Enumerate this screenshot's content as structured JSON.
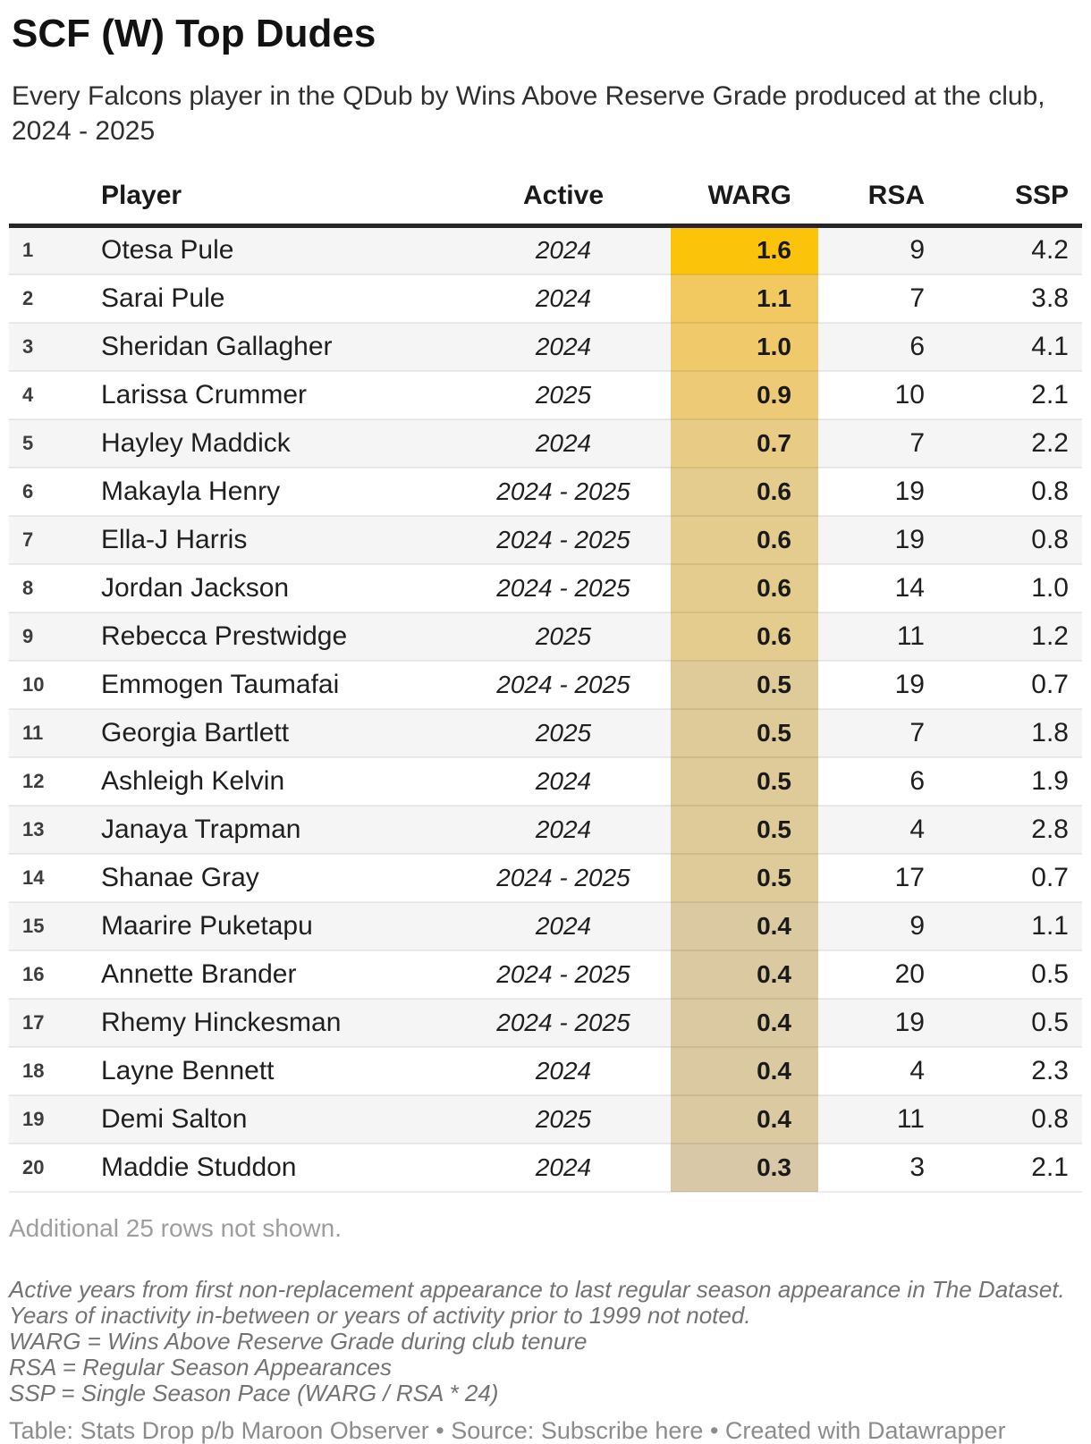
{
  "title": "SCF (W) Top Dudes",
  "subtitle": "Every Falcons player in the QDub by Wins Above Reserve Grade produced at the club, 2024 - 2025",
  "chart_data": {
    "type": "table",
    "title": "SCF (W) Top Dudes",
    "columns": [
      "Player",
      "Active",
      "WARG",
      "RSA",
      "SSP"
    ],
    "heatmap_column": "WARG",
    "colors": {
      "warg_max": "#fcc30b",
      "warg_min": "#d8c8a8",
      "stripe": "#f5f5f5",
      "header_rule": "#262626"
    },
    "rows": [
      {
        "rank": "1",
        "player": "Otesa Pule",
        "active": "2024",
        "warg": "1.6",
        "rsa": "9",
        "ssp": "4.2",
        "warg_color": "#fcc30b"
      },
      {
        "rank": "2",
        "player": "Sarai Pule",
        "active": "2024",
        "warg": "1.1",
        "rsa": "7",
        "ssp": "3.8",
        "warg_color": "#f2c961"
      },
      {
        "rank": "3",
        "player": "Sheridan Gallagher",
        "active": "2024",
        "warg": "1.0",
        "rsa": "6",
        "ssp": "4.1",
        "warg_color": "#f0ca6a"
      },
      {
        "rank": "4",
        "player": "Larissa Crummer",
        "active": "2025",
        "warg": "0.9",
        "rsa": "10",
        "ssp": "2.1",
        "warg_color": "#edcb76"
      },
      {
        "rank": "5",
        "player": "Hayley Maddick",
        "active": "2024",
        "warg": "0.7",
        "rsa": "7",
        "ssp": "2.2",
        "warg_color": "#e8cc86"
      },
      {
        "rank": "6",
        "player": "Makayla Henry",
        "active": "2024 - 2025",
        "warg": "0.6",
        "rsa": "19",
        "ssp": "0.8",
        "warg_color": "#e4cc8f"
      },
      {
        "rank": "7",
        "player": "Ella-J Harris",
        "active": "2024 - 2025",
        "warg": "0.6",
        "rsa": "19",
        "ssp": "0.8",
        "warg_color": "#e4cc8f"
      },
      {
        "rank": "8",
        "player": "Jordan Jackson",
        "active": "2024 - 2025",
        "warg": "0.6",
        "rsa": "14",
        "ssp": "1.0",
        "warg_color": "#e4cc8f"
      },
      {
        "rank": "9",
        "player": "Rebecca Prestwidge",
        "active": "2025",
        "warg": "0.6",
        "rsa": "11",
        "ssp": "1.2",
        "warg_color": "#e4cc8f"
      },
      {
        "rank": "10",
        "player": "Emmogen Taumafai",
        "active": "2024 - 2025",
        "warg": "0.5",
        "rsa": "19",
        "ssp": "0.7",
        "warg_color": "#dfcb99"
      },
      {
        "rank": "11",
        "player": "Georgia Bartlett",
        "active": "2025",
        "warg": "0.5",
        "rsa": "7",
        "ssp": "1.8",
        "warg_color": "#dfcb99"
      },
      {
        "rank": "12",
        "player": "Ashleigh Kelvin",
        "active": "2024",
        "warg": "0.5",
        "rsa": "6",
        "ssp": "1.9",
        "warg_color": "#dfcb99"
      },
      {
        "rank": "13",
        "player": "Janaya Trapman",
        "active": "2024",
        "warg": "0.5",
        "rsa": "4",
        "ssp": "2.8",
        "warg_color": "#dfcb99"
      },
      {
        "rank": "14",
        "player": "Shanae Gray",
        "active": "2024 - 2025",
        "warg": "0.5",
        "rsa": "17",
        "ssp": "0.7",
        "warg_color": "#dfcb99"
      },
      {
        "rank": "15",
        "player": "Maarire Puketapu",
        "active": "2024",
        "warg": "0.4",
        "rsa": "9",
        "ssp": "1.1",
        "warg_color": "#dbc9a1"
      },
      {
        "rank": "16",
        "player": "Annette Brander",
        "active": "2024 - 2025",
        "warg": "0.4",
        "rsa": "20",
        "ssp": "0.5",
        "warg_color": "#dbc9a1"
      },
      {
        "rank": "17",
        "player": "Rhemy Hinckesman",
        "active": "2024 - 2025",
        "warg": "0.4",
        "rsa": "19",
        "ssp": "0.5",
        "warg_color": "#dbc9a1"
      },
      {
        "rank": "18",
        "player": "Layne Bennett",
        "active": "2024",
        "warg": "0.4",
        "rsa": "4",
        "ssp": "2.3",
        "warg_color": "#dbc9a1"
      },
      {
        "rank": "19",
        "player": "Demi Salton",
        "active": "2025",
        "warg": "0.4",
        "rsa": "11",
        "ssp": "0.8",
        "warg_color": "#dbc9a1"
      },
      {
        "rank": "20",
        "player": "Maddie Studdon",
        "active": "2024",
        "warg": "0.3",
        "rsa": "3",
        "ssp": "2.1",
        "warg_color": "#d8c8a8"
      }
    ]
  },
  "additional_note": "Additional 25 rows not shown.",
  "footnotes": [
    "Active years from first non-replacement appearance to last regular season appearance in The Dataset. Years of inactivity in-between or years of activity prior to 1999 not noted.",
    "WARG = Wins Above Reserve Grade during club tenure",
    "RSA = Regular Season Appearances",
    "SSP = Single Season Pace (WARG / RSA * 24)"
  ],
  "footer": {
    "table_label": "Table:",
    "table_credit": "Stats Drop p/b Maroon Observer",
    "separator": "•",
    "source_label": "Source:",
    "source_link": "Subscribe here",
    "created_with": "Created with Datawrapper"
  }
}
